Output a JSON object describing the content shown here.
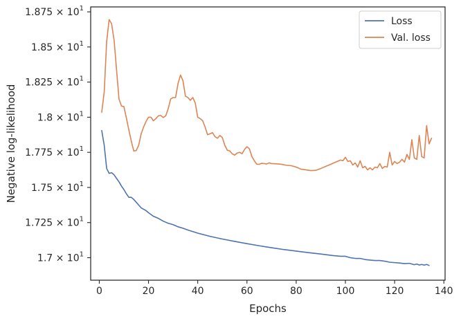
{
  "chart_data": {
    "type": "line",
    "title": "",
    "xlabel": "Epochs",
    "ylabel": "Negative log-likelihood",
    "xlim": [
      -3.5,
      140.5
    ],
    "ylim": [
      16.84,
      18.785
    ],
    "xticks": [
      0,
      20,
      40,
      60,
      80,
      100,
      120,
      140
    ],
    "xtick_labels": [
      "0",
      "20",
      "40",
      "60",
      "80",
      "100",
      "120",
      "140"
    ],
    "yticks": [
      17.0,
      17.25,
      17.5,
      17.75,
      18.0,
      18.25,
      18.5,
      18.75
    ],
    "ytick_labels": [
      {
        "mantissa": "1.7",
        "base": "10",
        "exp": "1"
      },
      {
        "mantissa": "1.725",
        "base": "10",
        "exp": "1"
      },
      {
        "mantissa": "1.75",
        "base": "10",
        "exp": "1"
      },
      {
        "mantissa": "1.775",
        "base": "10",
        "exp": "1"
      },
      {
        "mantissa": "1.8",
        "base": "10",
        "exp": "1"
      },
      {
        "mantissa": "1.825",
        "base": "10",
        "exp": "1"
      },
      {
        "mantissa": "1.85",
        "base": "10",
        "exp": "1"
      },
      {
        "mantissa": "1.875",
        "base": "10",
        "exp": "1"
      }
    ],
    "grid": false,
    "legend_position": "top-right",
    "series": [
      {
        "name": "Loss",
        "color": "#4c72b0",
        "points": [
          [
            1,
            17.905
          ],
          [
            2,
            17.8
          ],
          [
            3,
            17.635
          ],
          [
            4,
            17.6
          ],
          [
            5,
            17.605
          ],
          [
            6,
            17.59
          ],
          [
            7,
            17.565
          ],
          [
            8,
            17.54
          ],
          [
            9,
            17.51
          ],
          [
            10,
            17.485
          ],
          [
            11,
            17.455
          ],
          [
            12,
            17.43
          ],
          [
            13,
            17.43
          ],
          [
            14,
            17.415
          ],
          [
            15,
            17.395
          ],
          [
            16,
            17.375
          ],
          [
            17,
            17.355
          ],
          [
            18,
            17.345
          ],
          [
            19,
            17.335
          ],
          [
            20,
            17.32
          ],
          [
            22,
            17.295
          ],
          [
            24,
            17.28
          ],
          [
            26,
            17.26
          ],
          [
            28,
            17.245
          ],
          [
            30,
            17.235
          ],
          [
            32,
            17.22
          ],
          [
            34,
            17.21
          ],
          [
            36,
            17.197
          ],
          [
            38,
            17.186
          ],
          [
            40,
            17.175
          ],
          [
            45,
            17.152
          ],
          [
            50,
            17.133
          ],
          [
            55,
            17.116
          ],
          [
            60,
            17.1
          ],
          [
            65,
            17.085
          ],
          [
            70,
            17.071
          ],
          [
            75,
            17.058
          ],
          [
            80,
            17.047
          ],
          [
            85,
            17.036
          ],
          [
            90,
            17.026
          ],
          [
            95,
            17.015
          ],
          [
            98,
            17.01
          ],
          [
            100,
            17.01
          ],
          [
            102,
            17.0
          ],
          [
            104,
            16.995
          ],
          [
            106,
            16.995
          ],
          [
            108,
            16.987
          ],
          [
            110,
            16.983
          ],
          [
            112,
            16.98
          ],
          [
            114,
            16.98
          ],
          [
            116,
            16.975
          ],
          [
            118,
            16.968
          ],
          [
            120,
            16.965
          ],
          [
            122,
            16.962
          ],
          [
            124,
            16.958
          ],
          [
            126,
            16.96
          ],
          [
            127,
            16.955
          ],
          [
            128,
            16.95
          ],
          [
            129,
            16.955
          ],
          [
            130,
            16.948
          ],
          [
            131,
            16.952
          ],
          [
            132,
            16.947
          ],
          [
            133,
            16.952
          ],
          [
            134,
            16.945
          ]
        ]
      },
      {
        "name": "Val. loss",
        "color": "#dd8452",
        "points": [
          [
            1,
            18.035
          ],
          [
            2,
            18.18
          ],
          [
            3,
            18.54
          ],
          [
            4,
            18.695
          ],
          [
            5,
            18.665
          ],
          [
            6,
            18.55
          ],
          [
            7,
            18.34
          ],
          [
            8,
            18.13
          ],
          [
            9,
            18.08
          ],
          [
            10,
            18.075
          ],
          [
            11,
            17.995
          ],
          [
            12,
            17.91
          ],
          [
            13,
            17.83
          ],
          [
            14,
            17.76
          ],
          [
            15,
            17.762
          ],
          [
            16,
            17.8
          ],
          [
            17,
            17.88
          ],
          [
            18,
            17.93
          ],
          [
            19,
            17.97
          ],
          [
            20,
            18.0
          ],
          [
            21,
            18.0
          ],
          [
            22,
            17.975
          ],
          [
            23,
            17.99
          ],
          [
            24,
            18.01
          ],
          [
            25,
            18.012
          ],
          [
            26,
            17.998
          ],
          [
            27,
            18.01
          ],
          [
            28,
            18.06
          ],
          [
            29,
            18.13
          ],
          [
            30,
            18.14
          ],
          [
            31,
            18.14
          ],
          [
            32,
            18.24
          ],
          [
            33,
            18.3
          ],
          [
            34,
            18.26
          ],
          [
            35,
            18.15
          ],
          [
            36,
            18.14
          ],
          [
            37,
            18.12
          ],
          [
            38,
            18.14
          ],
          [
            39,
            18.1
          ],
          [
            40,
            18.0
          ],
          [
            41,
            17.99
          ],
          [
            42,
            17.975
          ],
          [
            43,
            17.93
          ],
          [
            44,
            17.875
          ],
          [
            45,
            17.882
          ],
          [
            46,
            17.89
          ],
          [
            47,
            17.862
          ],
          [
            48,
            17.85
          ],
          [
            49,
            17.87
          ],
          [
            50,
            17.855
          ],
          [
            51,
            17.8
          ],
          [
            52,
            17.765
          ],
          [
            53,
            17.76
          ],
          [
            54,
            17.74
          ],
          [
            55,
            17.73
          ],
          [
            56,
            17.745
          ],
          [
            57,
            17.75
          ],
          [
            58,
            17.74
          ],
          [
            59,
            17.77
          ],
          [
            60,
            17.79
          ],
          [
            61,
            17.775
          ],
          [
            62,
            17.72
          ],
          [
            63,
            17.69
          ],
          [
            64,
            17.665
          ],
          [
            65,
            17.665
          ],
          [
            66,
            17.672
          ],
          [
            67,
            17.67
          ],
          [
            68,
            17.667
          ],
          [
            69,
            17.675
          ],
          [
            70,
            17.67
          ],
          [
            72,
            17.668
          ],
          [
            74,
            17.665
          ],
          [
            76,
            17.658
          ],
          [
            78,
            17.655
          ],
          [
            80,
            17.645
          ],
          [
            82,
            17.63
          ],
          [
            84,
            17.625
          ],
          [
            86,
            17.62
          ],
          [
            88,
            17.622
          ],
          [
            90,
            17.635
          ],
          [
            92,
            17.65
          ],
          [
            94,
            17.665
          ],
          [
            96,
            17.68
          ],
          [
            98,
            17.695
          ],
          [
            99,
            17.69
          ],
          [
            100,
            17.715
          ],
          [
            101,
            17.685
          ],
          [
            102,
            17.69
          ],
          [
            103,
            17.66
          ],
          [
            104,
            17.675
          ],
          [
            105,
            17.645
          ],
          [
            106,
            17.69
          ],
          [
            107,
            17.64
          ],
          [
            108,
            17.65
          ],
          [
            109,
            17.625
          ],
          [
            110,
            17.64
          ],
          [
            111,
            17.625
          ],
          [
            112,
            17.645
          ],
          [
            113,
            17.64
          ],
          [
            114,
            17.67
          ],
          [
            115,
            17.635
          ],
          [
            116,
            17.65
          ],
          [
            117,
            17.645
          ],
          [
            118,
            17.75
          ],
          [
            119,
            17.66
          ],
          [
            120,
            17.685
          ],
          [
            121,
            17.67
          ],
          [
            122,
            17.68
          ],
          [
            123,
            17.7
          ],
          [
            124,
            17.68
          ],
          [
            125,
            17.735
          ],
          [
            126,
            17.7
          ],
          [
            127,
            17.84
          ],
          [
            128,
            17.71
          ],
          [
            129,
            17.7
          ],
          [
            130,
            17.87
          ],
          [
            131,
            17.72
          ],
          [
            132,
            17.71
          ],
          [
            133,
            17.94
          ],
          [
            134,
            17.81
          ],
          [
            135,
            17.85
          ]
        ]
      }
    ]
  }
}
